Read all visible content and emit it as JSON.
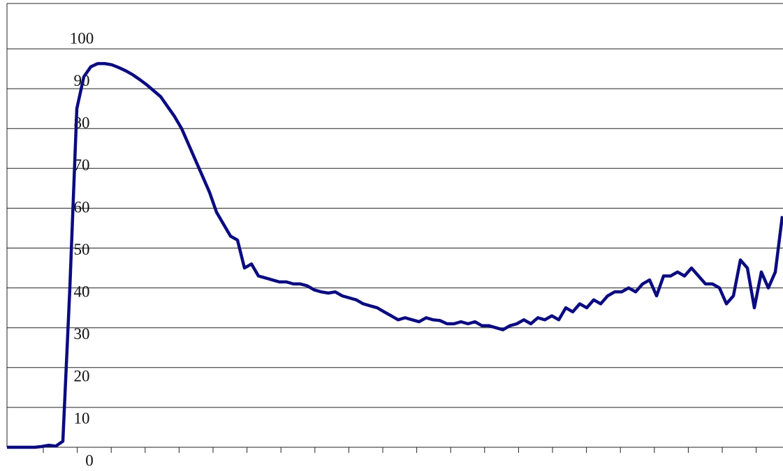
{
  "chart_data": {
    "type": "line",
    "series": [
      {
        "color": "#0b0b80",
        "values": [
          0,
          0,
          0,
          0,
          0,
          0.2,
          0.5,
          0.3,
          1.5,
          40,
          85,
          93,
          95.5,
          96.3,
          96.3,
          96,
          95.3,
          94.5,
          93.5,
          92.3,
          91,
          89.5,
          88,
          85.5,
          83,
          80,
          76,
          72,
          68,
          64,
          59,
          56,
          53,
          52,
          45,
          46,
          43,
          42.5,
          42,
          41.5,
          41.5,
          41,
          41,
          40.5,
          39.5,
          39,
          38.7,
          39,
          38,
          37.5,
          37,
          36,
          35.5,
          35,
          34,
          33,
          32,
          32.5,
          32,
          31.5,
          32.5,
          32,
          31.8,
          31,
          31,
          31.5,
          31,
          31.5,
          30.5,
          30.5,
          30,
          29.5,
          30.5,
          31,
          32,
          31,
          32.5,
          32,
          33,
          32,
          35,
          34,
          36,
          35,
          37,
          36,
          38,
          39,
          39,
          40,
          39,
          41,
          42,
          38,
          43,
          43,
          44,
          43,
          45,
          43,
          41,
          41,
          40,
          36,
          38,
          47,
          45,
          35,
          44,
          40,
          44,
          58
        ]
      }
    ],
    "ylim": [
      0,
      100
    ],
    "yticks": [
      0,
      10,
      20,
      30,
      40,
      50,
      60,
      70,
      80,
      90,
      100
    ],
    "grid": true
  }
}
